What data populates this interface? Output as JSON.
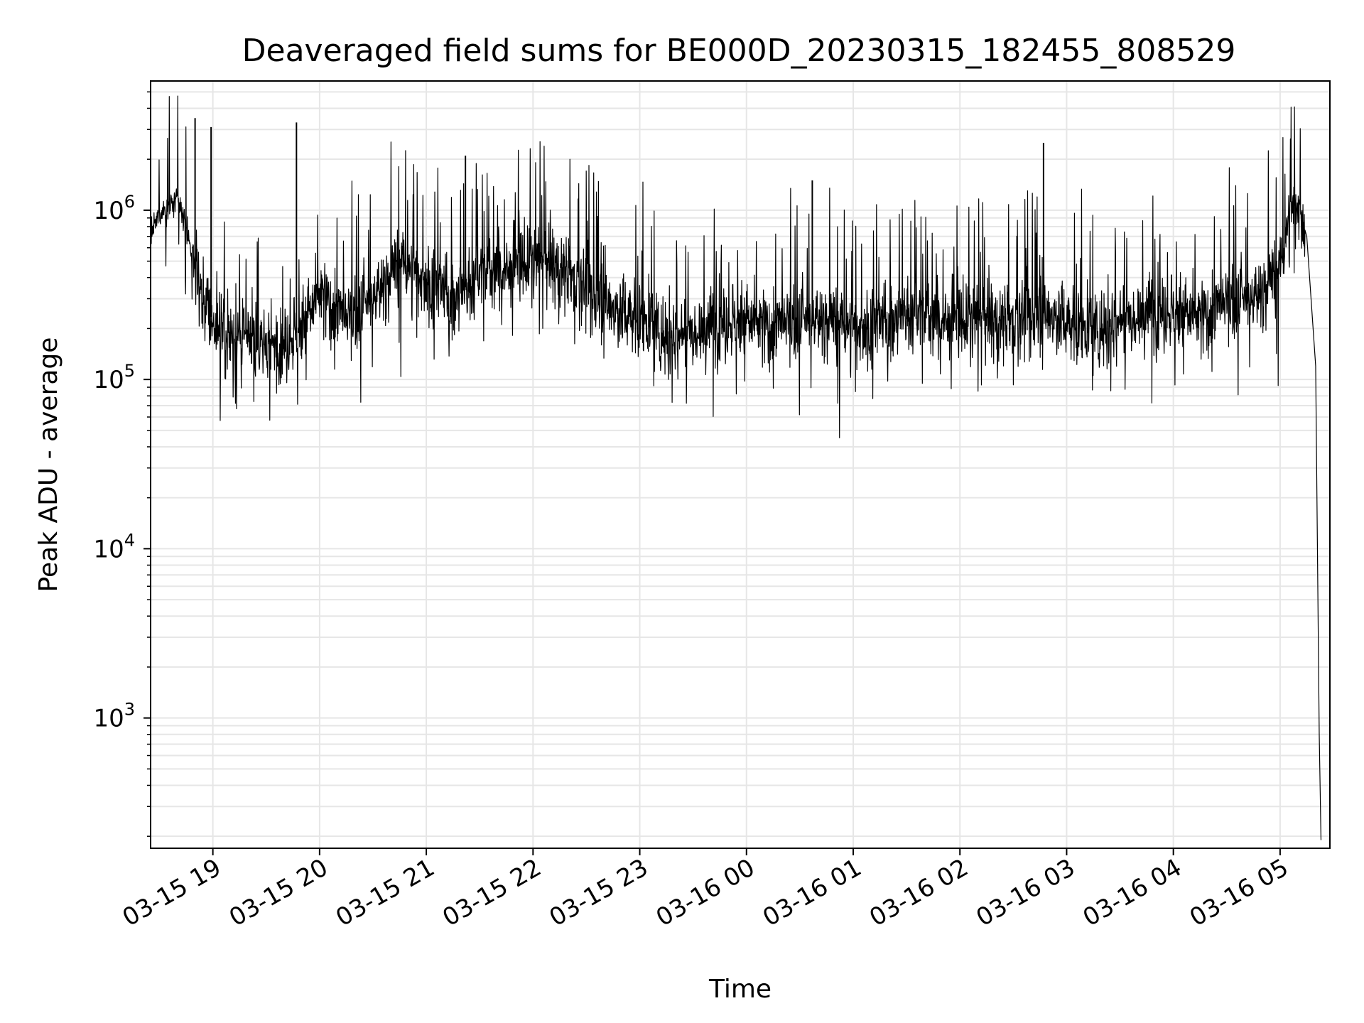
{
  "chart_data": {
    "type": "line",
    "title": "Deaveraged field sums for BE000D_20230315_182455_808529",
    "xlabel": "Time",
    "ylabel": "Peak ADU - average",
    "yscale": "log",
    "ylim": [
      170,
      5800000
    ],
    "xlim": [
      "03-15 18:25",
      "03-16 05:28"
    ],
    "grid": true,
    "line_color": "#000000",
    "grid_color": "#e6e6e6",
    "x_ticks": [
      "03-15 19",
      "03-15 20",
      "03-15 21",
      "03-15 22",
      "03-15 23",
      "03-16 00",
      "03-16 01",
      "03-16 02",
      "03-16 03",
      "03-16 04",
      "03-16 05"
    ],
    "y_ticks": [
      {
        "value": 1000,
        "base": "10",
        "exp": "3"
      },
      {
        "value": 10000,
        "base": "10",
        "exp": "4"
      },
      {
        "value": 100000,
        "base": "10",
        "exp": "5"
      },
      {
        "value": 1000000,
        "base": "10",
        "exp": "6"
      }
    ],
    "series": [
      {
        "x": [
          "03-15 18:25",
          "03-15 18:30",
          "03-15 18:35",
          "03-15 18:40",
          "03-15 18:45",
          "03-15 18:50",
          "03-15 18:55",
          "03-15 19:00",
          "03-15 19:10",
          "03-15 19:20",
          "03-15 19:30",
          "03-15 19:40",
          "03-15 19:50",
          "03-15 20:00",
          "03-15 20:15",
          "03-15 20:30",
          "03-15 20:45",
          "03-15 21:00",
          "03-15 21:15",
          "03-15 21:30",
          "03-15 21:45",
          "03-15 22:00",
          "03-15 22:15",
          "03-15 22:30",
          "03-15 22:45",
          "03-15 23:00",
          "03-15 23:15",
          "03-15 23:30",
          "03-15 23:45",
          "03-16 00:00",
          "03-16 00:15",
          "03-16 00:30",
          "03-16 00:45",
          "03-16 01:00",
          "03-16 01:15",
          "03-16 01:30",
          "03-16 01:45",
          "03-16 02:00",
          "03-16 02:15",
          "03-16 02:30",
          "03-16 02:45",
          "03-16 03:00",
          "03-16 03:15",
          "03-16 03:30",
          "03-16 03:45",
          "03-16 04:00",
          "03-16 04:15",
          "03-16 04:30",
          "03-16 04:45",
          "03-16 05:00",
          "03-16 05:05",
          "03-16 05:10",
          "03-16 05:15",
          "03-16 05:20",
          "03-16 05:22",
          "03-16 05:23"
        ],
        "values": [
          700000,
          950000,
          1050000,
          1150000,
          800000,
          450000,
          300000,
          220000,
          180000,
          170000,
          160000,
          165000,
          200000,
          320000,
          220000,
          300000,
          500000,
          380000,
          300000,
          420000,
          450000,
          500000,
          480000,
          350000,
          260000,
          230000,
          180000,
          200000,
          220000,
          220000,
          200000,
          220000,
          230000,
          200000,
          210000,
          250000,
          230000,
          220000,
          230000,
          230000,
          250000,
          220000,
          190000,
          230000,
          260000,
          250000,
          230000,
          280000,
          300000,
          450000,
          900000,
          1100000,
          700000,
          120000,
          800,
          190
        ]
      }
    ],
    "spikes": [
      {
        "x": "03-15 18:50",
        "value": 3500000
      },
      {
        "x": "03-15 18:59",
        "value": 3100000
      },
      {
        "x": "03-15 19:47",
        "value": 3300000
      },
      {
        "x": "03-15 21:22",
        "value": 2100000
      },
      {
        "x": "03-16 00:37",
        "value": 1500000
      },
      {
        "x": "03-16 02:47",
        "value": 2500000
      }
    ]
  }
}
